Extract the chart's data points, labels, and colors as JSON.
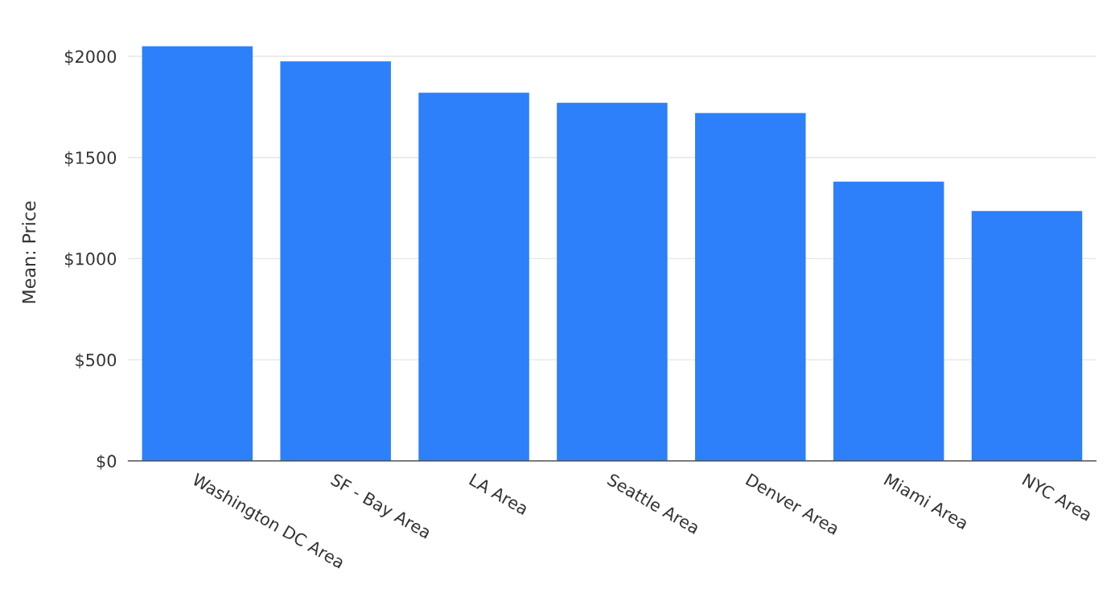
{
  "chart_data": {
    "type": "bar",
    "ylabel": "Mean: Price",
    "categories": [
      "Washington DC Area",
      "SF - Bay Area",
      "LA Area",
      "Seattle Area",
      "Denver Area",
      "Miami Area",
      "NYC Area"
    ],
    "values": [
      2050,
      1975,
      1820,
      1770,
      1720,
      1380,
      1235
    ],
    "color": "#2d7ffa",
    "ylim": [
      0,
      2060
    ],
    "yticks": [
      {
        "value": 0,
        "label": "$0"
      },
      {
        "value": 500,
        "label": "$500"
      },
      {
        "value": 1000,
        "label": "$1000"
      },
      {
        "value": 1500,
        "label": "$1500"
      },
      {
        "value": 2000,
        "label": "$2000"
      }
    ],
    "grid": "y",
    "legend": false
  }
}
